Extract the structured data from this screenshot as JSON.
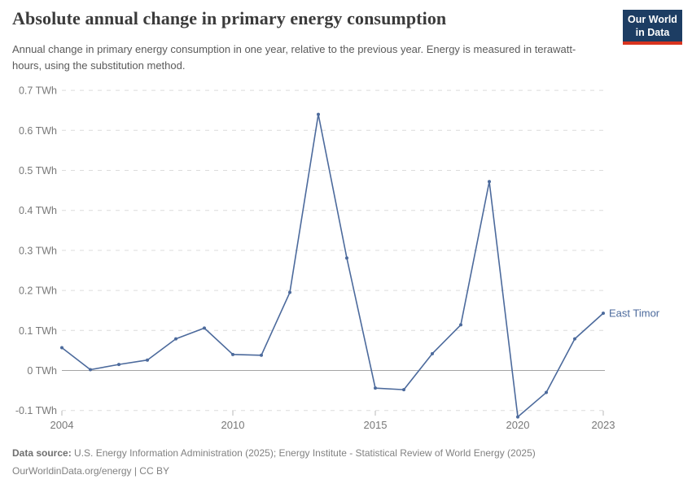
{
  "header": {
    "title": "Absolute annual change in primary energy consumption",
    "subtitle": "Annual change in primary energy consumption in one year, relative to the previous year. Energy is measured in terawatt-hours, using the substitution method.",
    "logo": {
      "line1": "Our World",
      "line2": "in Data"
    }
  },
  "chart_data": {
    "type": "line",
    "title": "Absolute annual change in primary energy consumption",
    "xlabel": "",
    "ylabel": "",
    "unit": "TWh",
    "x": [
      2004,
      2005,
      2006,
      2007,
      2008,
      2009,
      2010,
      2011,
      2012,
      2013,
      2014,
      2015,
      2016,
      2017,
      2018,
      2019,
      2020,
      2021,
      2022,
      2023
    ],
    "series": [
      {
        "name": "East Timor",
        "color": "#4C6A9C",
        "values": [
          0.057,
          0.002,
          0.015,
          0.026,
          0.079,
          0.106,
          0.04,
          0.038,
          0.195,
          0.64,
          0.281,
          -0.044,
          -0.048,
          0.042,
          0.114,
          0.472,
          -0.116,
          -0.055,
          0.079,
          0.143
        ]
      }
    ],
    "ylim": [
      -0.1,
      0.7
    ],
    "xlim": [
      2004,
      2023
    ],
    "grid": true,
    "legend_position": "end-of-line",
    "y_ticks": [
      {
        "value": -0.1,
        "label": "-0.1 TWh"
      },
      {
        "value": 0,
        "label": "0 TWh"
      },
      {
        "value": 0.1,
        "label": "0.1 TWh"
      },
      {
        "value": 0.2,
        "label": "0.2 TWh"
      },
      {
        "value": 0.3,
        "label": "0.3 TWh"
      },
      {
        "value": 0.4,
        "label": "0.4 TWh"
      },
      {
        "value": 0.5,
        "label": "0.5 TWh"
      },
      {
        "value": 0.6,
        "label": "0.6 TWh"
      },
      {
        "value": 0.7,
        "label": "0.7 TWh"
      }
    ],
    "x_ticks": [
      {
        "value": 2004,
        "label": "2004"
      },
      {
        "value": 2010,
        "label": "2010"
      },
      {
        "value": 2015,
        "label": "2015"
      },
      {
        "value": 2020,
        "label": "2020"
      },
      {
        "value": 2023,
        "label": "2023"
      }
    ]
  },
  "footer": {
    "source_label": "Data source:",
    "source_text": " U.S. Energy Information Administration (2025); Energy Institute - Statistical Review of World Energy (2025)",
    "license_text": "OurWorldinData.org/energy | CC BY"
  },
  "colors": {
    "accent": "#4C6A9C",
    "logo_bg": "#1d3d63",
    "logo_stripe": "#d8341f",
    "grid_line": "#dcdcdc",
    "zero_line": "#a5a5a5",
    "tick_text": "#787878"
  }
}
